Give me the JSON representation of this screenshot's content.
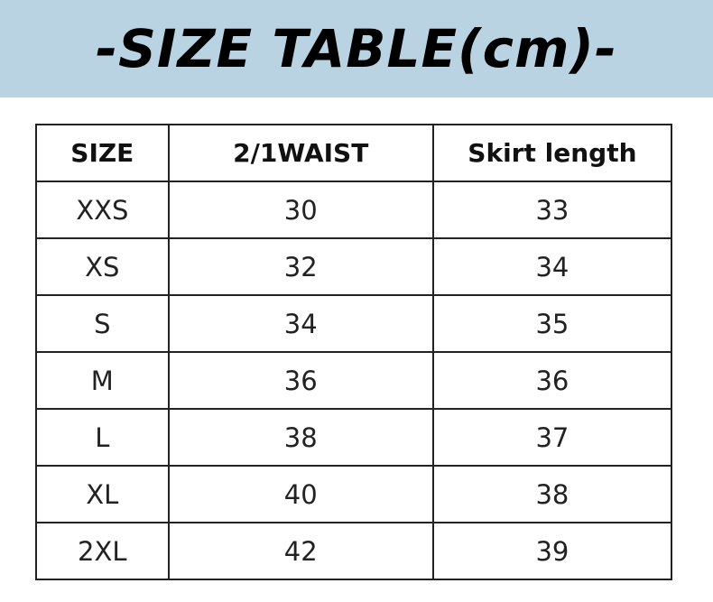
{
  "title": "-SIZE TABLE(cm)-",
  "headers": [
    "SIZE",
    "2/1WAIST",
    "Skirt length"
  ],
  "rows": [
    [
      "XXS",
      "30",
      "33"
    ],
    [
      "XS",
      "32",
      "34"
    ],
    [
      "S",
      "34",
      "35"
    ],
    [
      "M",
      "36",
      "36"
    ],
    [
      "L",
      "38",
      "37"
    ],
    [
      "XL",
      "40",
      "38"
    ],
    [
      "2XL",
      "42",
      "39"
    ]
  ],
  "colors": {
    "banner": "#b9d3e3"
  }
}
